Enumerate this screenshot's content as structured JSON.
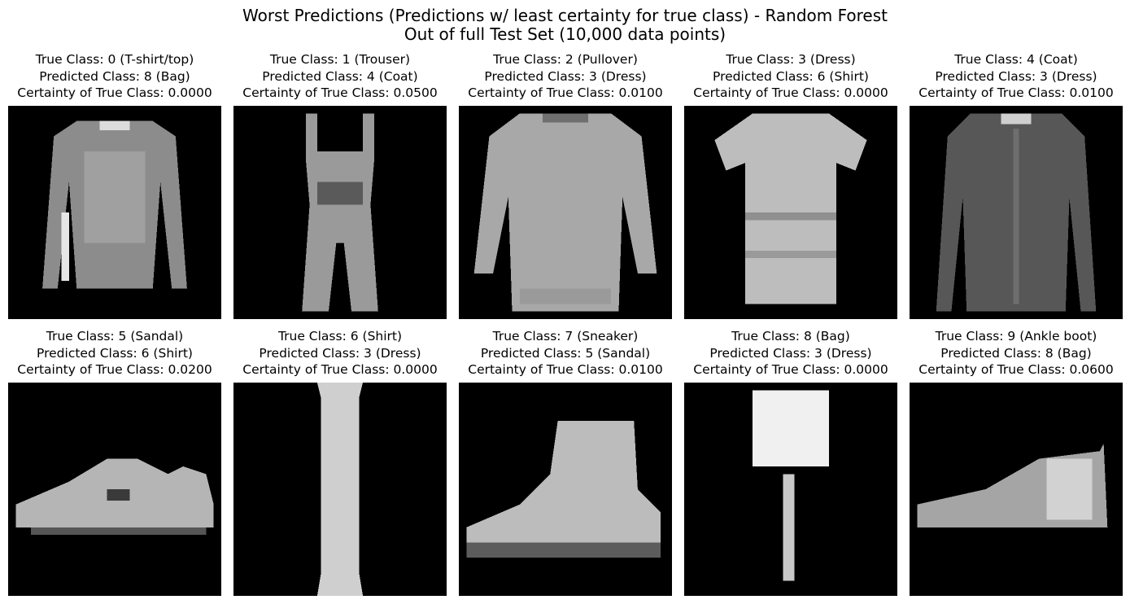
{
  "figure": {
    "title_line1": "Worst Predictions (Predictions w/ least certainty for true class) - Random Forest",
    "title_line2": "Out of full Test Set (10,000 data points)"
  },
  "chart_data": {
    "type": "image-grid",
    "rows": 2,
    "cols": 5,
    "colormap": "gray",
    "axes": "off",
    "panels": [
      {
        "true_label": "True Class: 0 (T-shirt/top)",
        "pred_label": "Predicted Class: 8 (Bag)",
        "cert_label": "Certainty of True Class: 0.0000",
        "true_class": 0,
        "predicted_class": 8,
        "certainty": 0.0,
        "depicts": "long-sleeve top",
        "shape": "longsleeve"
      },
      {
        "true_label": "True Class: 1 (Trouser)",
        "pred_label": "Predicted Class: 4 (Coat)",
        "cert_label": "Certainty of True Class: 0.0500",
        "true_class": 1,
        "predicted_class": 4,
        "certainty": 0.05,
        "depicts": "overalls",
        "shape": "overalls"
      },
      {
        "true_label": "True Class: 2 (Pullover)",
        "pred_label": "Predicted Class: 3 (Dress)",
        "cert_label": "Certainty of True Class: 0.0100",
        "true_class": 2,
        "predicted_class": 3,
        "certainty": 0.01,
        "depicts": "pullover",
        "shape": "pullover"
      },
      {
        "true_label": "True Class: 3 (Dress)",
        "pred_label": "Predicted Class: 6 (Shirt)",
        "cert_label": "Certainty of True Class: 0.0000",
        "true_class": 3,
        "predicted_class": 6,
        "certainty": 0.0,
        "depicts": "short-sleeve dress",
        "shape": "tshirtdress"
      },
      {
        "true_label": "True Class: 4 (Coat)",
        "pred_label": "Predicted Class: 3 (Dress)",
        "cert_label": "Certainty of True Class: 0.0100",
        "true_class": 4,
        "predicted_class": 3,
        "certainty": 0.01,
        "depicts": "coat",
        "shape": "coat"
      },
      {
        "true_label": "True Class: 5 (Sandal)",
        "pred_label": "Predicted Class: 6 (Shirt)",
        "cert_label": "Certainty of True Class: 0.0200",
        "true_class": 5,
        "predicted_class": 6,
        "certainty": 0.02,
        "depicts": "low shoe",
        "shape": "lowshoe"
      },
      {
        "true_label": "True Class: 6 (Shirt)",
        "pred_label": "Predicted Class: 3 (Dress)",
        "cert_label": "Certainty of True Class: 0.0000",
        "true_class": 6,
        "predicted_class": 3,
        "certainty": 0.0,
        "depicts": "narrow vertical garment",
        "shape": "column"
      },
      {
        "true_label": "True Class: 7 (Sneaker)",
        "pred_label": "Predicted Class: 5 (Sandal)",
        "cert_label": "Certainty of True Class: 0.0100",
        "true_class": 7,
        "predicted_class": 5,
        "certainty": 0.01,
        "depicts": "high-top shoe",
        "shape": "boot"
      },
      {
        "true_label": "True Class: 8 (Bag)",
        "pred_label": "Predicted Class: 3 (Dress)",
        "cert_label": "Certainty of True Class: 0.0000",
        "true_class": 8,
        "predicted_class": 3,
        "certainty": 0.0,
        "depicts": "bag with strap",
        "shape": "bagstrap"
      },
      {
        "true_label": "True Class: 9 (Ankle boot)",
        "pred_label": "Predicted Class: 8 (Bag)",
        "cert_label": "Certainty of True Class: 0.0600",
        "true_class": 9,
        "predicted_class": 8,
        "certainty": 0.06,
        "depicts": "ankle shoe",
        "shape": "ankleshoe"
      }
    ]
  }
}
